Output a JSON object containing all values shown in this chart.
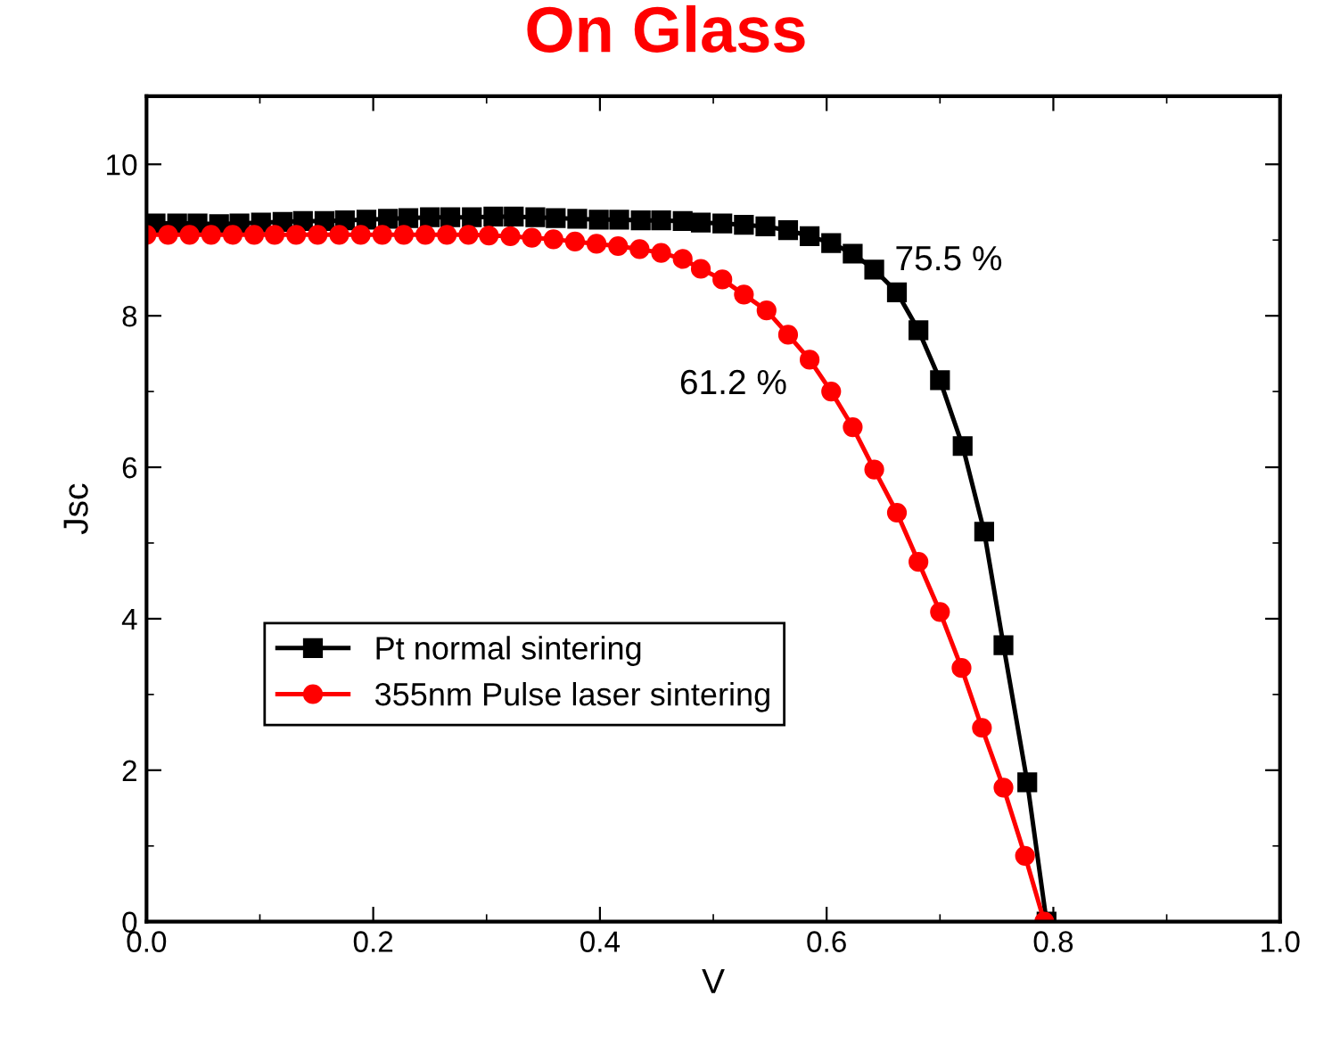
{
  "chart_data": {
    "type": "line",
    "title": "On Glass",
    "xlabel": "V",
    "ylabel": "Jsc",
    "xlim": [
      0,
      1.0
    ],
    "xticks": [
      {
        "value": 0,
        "label": "0.0"
      },
      0.2,
      0.4,
      0.6,
      0.8,
      {
        "value": 1.0,
        "label": "1.0"
      }
    ],
    "ylim": [
      0,
      10.9
    ],
    "yticks": [
      0,
      2,
      4,
      6,
      8,
      10
    ],
    "grid": false,
    "legend": "left",
    "line_style": "solid",
    "annotations": [
      "75.5 %",
      "61.2 %"
    ],
    "series": [
      {
        "name": "Pt normal sintering",
        "color": "#000000",
        "marker": "square",
        "x": [
          0.008,
          0.027,
          0.045,
          0.064,
          0.082,
          0.101,
          0.12,
          0.138,
          0.157,
          0.175,
          0.194,
          0.213,
          0.231,
          0.25,
          0.268,
          0.287,
          0.306,
          0.324,
          0.343,
          0.361,
          0.38,
          0.399,
          0.417,
          0.436,
          0.454,
          0.473,
          0.489,
          0.508,
          0.527,
          0.546,
          0.566,
          0.585,
          0.604,
          0.623,
          0.642,
          0.662,
          0.681,
          0.7,
          0.72,
          0.739,
          0.756,
          0.777,
          0.794
        ],
        "values": [
          9.22,
          9.22,
          9.22,
          9.21,
          9.22,
          9.23,
          9.24,
          9.25,
          9.25,
          9.26,
          9.27,
          9.28,
          9.29,
          9.3,
          9.3,
          9.3,
          9.31,
          9.31,
          9.3,
          9.29,
          9.28,
          9.27,
          9.27,
          9.26,
          9.26,
          9.25,
          9.23,
          9.22,
          9.2,
          9.18,
          9.13,
          9.05,
          8.96,
          8.82,
          8.61,
          8.31,
          7.81,
          7.15,
          6.28,
          5.15,
          3.65,
          1.84,
          0
        ]
      },
      {
        "name": "355nm Pulse laser sintering",
        "color": "#ff0000",
        "marker": "circle",
        "x": [
          0.0,
          0.019,
          0.038,
          0.057,
          0.076,
          0.095,
          0.113,
          0.132,
          0.151,
          0.17,
          0.189,
          0.208,
          0.227,
          0.246,
          0.265,
          0.284,
          0.302,
          0.321,
          0.34,
          0.359,
          0.378,
          0.397,
          0.416,
          0.435,
          0.454,
          0.473,
          0.489,
          0.508,
          0.527,
          0.547,
          0.566,
          0.585,
          0.604,
          0.623,
          0.642,
          0.662,
          0.681,
          0.7,
          0.719,
          0.737,
          0.756,
          0.775,
          0.792
        ],
        "values": [
          9.07,
          9.07,
          9.07,
          9.07,
          9.07,
          9.07,
          9.07,
          9.07,
          9.07,
          9.07,
          9.07,
          9.07,
          9.07,
          9.07,
          9.07,
          9.07,
          9.06,
          9.05,
          9.03,
          9.01,
          8.98,
          8.95,
          8.92,
          8.88,
          8.83,
          8.75,
          8.62,
          8.48,
          8.28,
          8.07,
          7.75,
          7.42,
          7.0,
          6.53,
          5.97,
          5.4,
          4.75,
          4.09,
          3.35,
          2.56,
          1.77,
          0.87,
          0
        ]
      }
    ]
  }
}
